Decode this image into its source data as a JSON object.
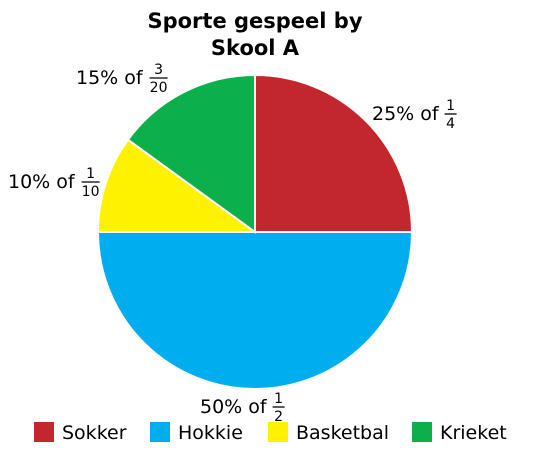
{
  "chart_data": {
    "type": "pie",
    "title": [
      "Sporte gespeel by",
      "Skool A"
    ],
    "slices": [
      {
        "name": "Sokker",
        "value": 25,
        "percent_label": "25% of",
        "fraction": {
          "num": "1",
          "den": "4"
        },
        "color": "#c1272d"
      },
      {
        "name": "Hokkie",
        "value": 50,
        "percent_label": "50% of",
        "fraction": {
          "num": "1",
          "den": "2"
        },
        "color": "#00aeef"
      },
      {
        "name": "Basketbal",
        "value": 10,
        "percent_label": "10% of",
        "fraction": {
          "num": "1",
          "den": "10"
        },
        "color": "#fff200"
      },
      {
        "name": "Krieket",
        "value": 15,
        "percent_label": "15% of",
        "fraction": {
          "num": "3",
          "den": "20"
        },
        "color": "#0bb04b"
      }
    ],
    "start_angle_deg": 0,
    "direction": "clockwise",
    "legend_position": "bottom"
  }
}
